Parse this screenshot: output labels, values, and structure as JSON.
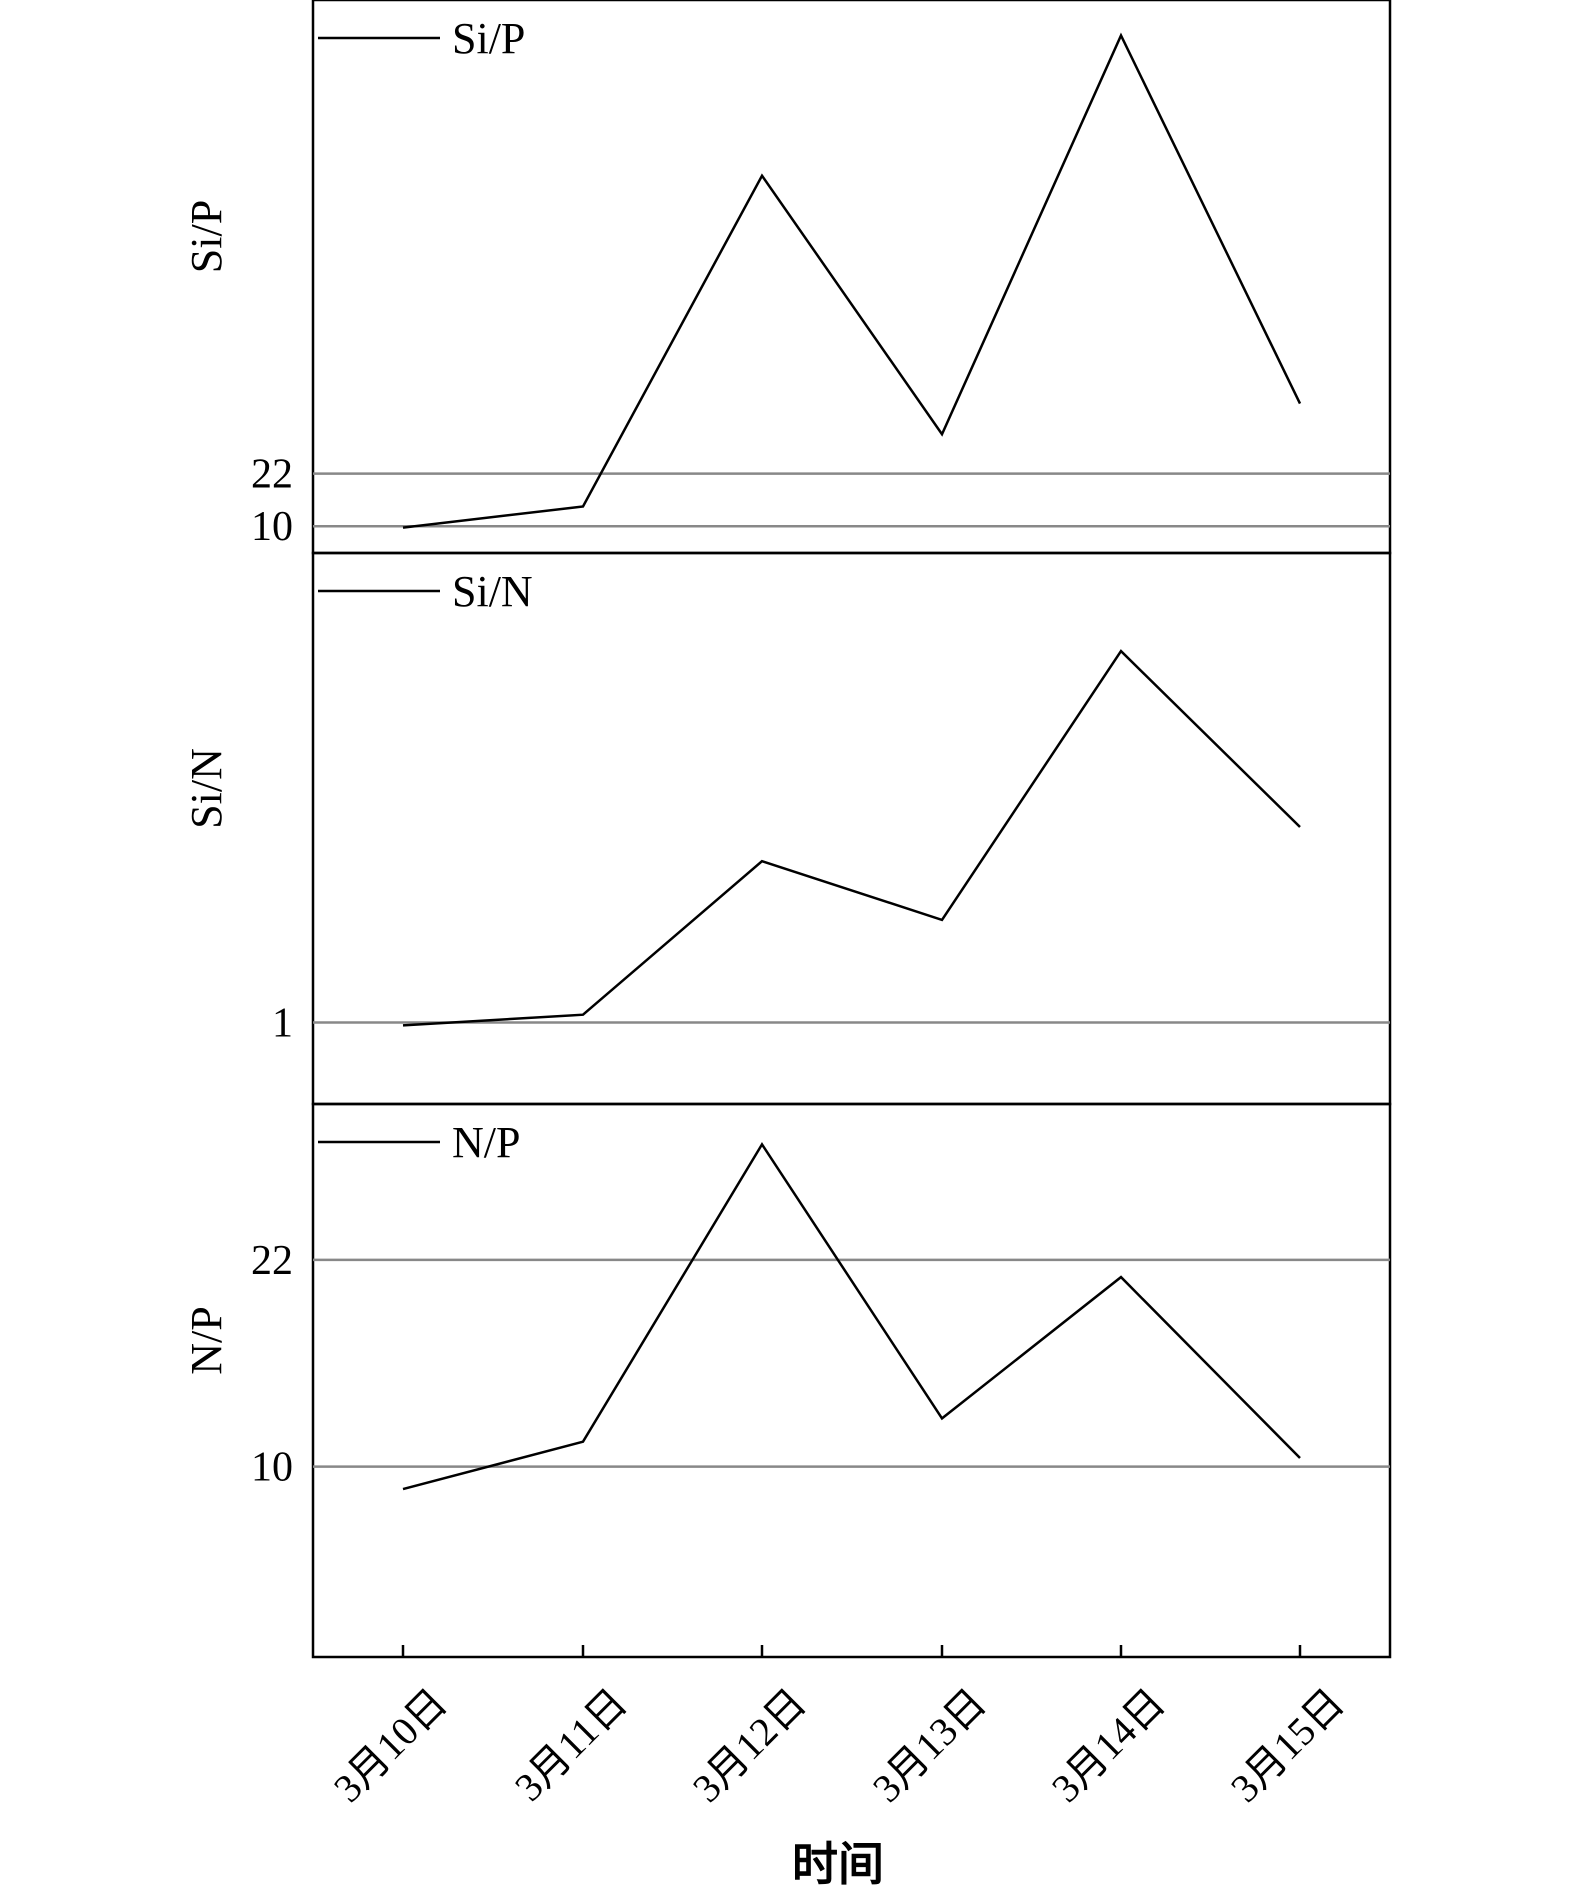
{
  "chart_data": [
    {
      "type": "line",
      "categories": [
        "3月10日",
        "3月11日",
        "3月12日",
        "3月13日",
        "3月14日",
        "3月15日"
      ],
      "ylabel": "Si/P",
      "series": [
        {
          "name": "Si/P",
          "values": [
            9.7,
            14.5,
            90,
            31,
            122,
            38
          ]
        }
      ],
      "reference_lines": [
        22,
        10
      ],
      "ylim": [
        8,
        126
      ],
      "grid": false,
      "legend": "top-left"
    },
    {
      "type": "line",
      "categories": [
        "3月10日",
        "3月11日",
        "3月12日",
        "3月13日",
        "3月14日",
        "3月15日"
      ],
      "ylabel": "Si/N",
      "series": [
        {
          "name": "Si/N",
          "values": [
            0.97,
            1.08,
            2.65,
            2.05,
            4.8,
            3.0
          ]
        }
      ],
      "reference_lines": [
        1
      ],
      "ylim": [
        0.35,
        5.62
      ],
      "grid": false,
      "legend": "top-left"
    },
    {
      "type": "line",
      "categories": [
        "3月10日",
        "3月11日",
        "3月12日",
        "3月13日",
        "3月14日",
        "3月15日"
      ],
      "ylabel": "N/P",
      "xlabel": "时间",
      "series": [
        {
          "name": "N/P",
          "values": [
            8.7,
            11.45,
            28.7,
            12.8,
            21,
            10.5
          ]
        }
      ],
      "reference_lines": [
        22,
        10
      ],
      "ylim": [
        0,
        30
      ],
      "grid": false,
      "legend": "top-left"
    }
  ]
}
